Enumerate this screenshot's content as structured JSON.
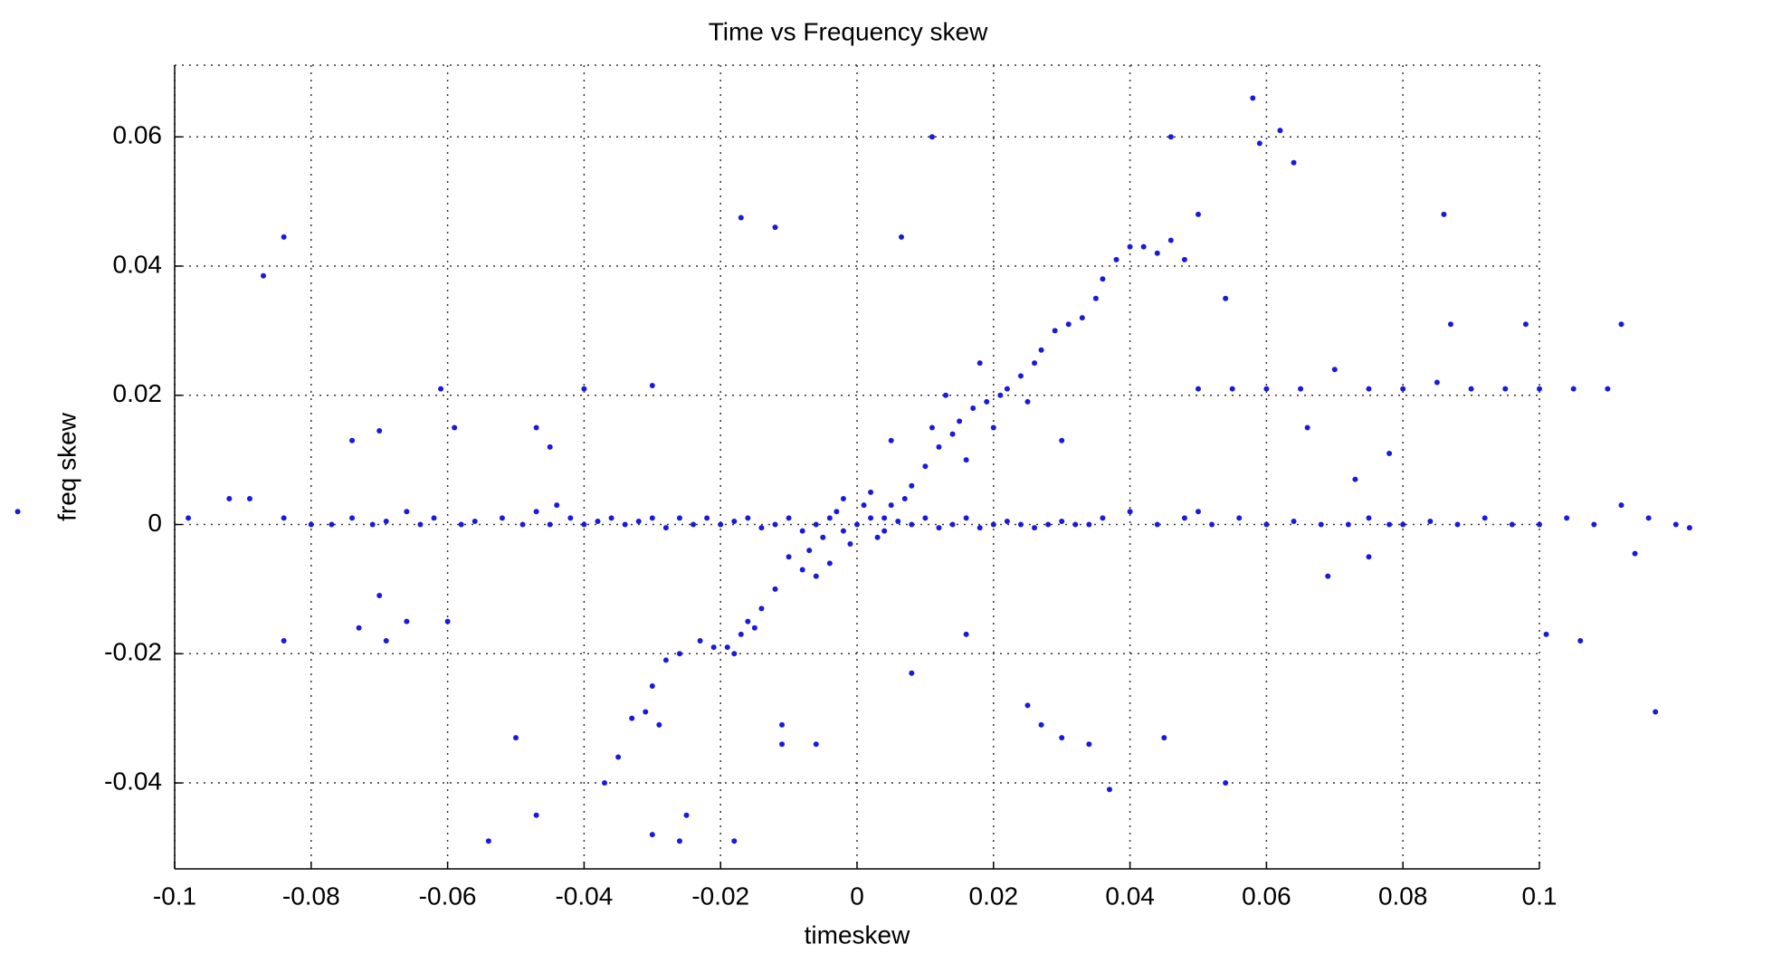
{
  "chart_data": {
    "type": "scatter",
    "title": "Time vs Frequency skew",
    "xlabel": "timeskew",
    "ylabel": "freq skew",
    "color": "#1a1adb",
    "grid": true,
    "xlim": [
      -0.1,
      0.1
    ],
    "ylim": [
      -0.0533,
      0.0711
    ],
    "xticks": [
      -0.1,
      -0.08,
      -0.06,
      -0.04,
      -0.02,
      0,
      0.02,
      0.04,
      0.06,
      0.08,
      0.1
    ],
    "yticks": [
      -0.04,
      -0.02,
      0,
      0.02,
      0.04,
      0.06
    ],
    "x": [
      -0.123,
      -0.098,
      -0.092,
      -0.089,
      -0.084,
      -0.08,
      -0.077,
      -0.074,
      -0.071,
      -0.069,
      -0.066,
      -0.064,
      -0.062,
      -0.058,
      -0.056,
      -0.052,
      -0.049,
      -0.047,
      -0.045,
      -0.044,
      -0.042,
      -0.04,
      -0.038,
      -0.036,
      -0.034,
      -0.032,
      -0.03,
      -0.028,
      -0.026,
      -0.024,
      -0.022,
      -0.02,
      -0.018,
      -0.016,
      -0.014,
      -0.012,
      -0.01,
      -0.008,
      -0.006,
      -0.004,
      -0.002,
      0,
      0.002,
      0.004,
      0.006,
      0.008,
      0.01,
      0.012,
      0.014,
      0.016,
      0.018,
      0.02,
      0.022,
      0.024,
      0.026,
      0.028,
      0.03,
      0.032,
      0.034,
      0.036,
      0.04,
      0.044,
      0.048,
      0.05,
      0.052,
      0.056,
      0.06,
      0.064,
      0.068,
      0.072,
      0.075,
      0.078,
      0.08,
      0.084,
      0.088,
      0.092,
      0.096,
      0.1,
      0.104,
      0.108,
      0.112,
      0.116,
      0.12,
      0.122,
      -0.005,
      -0.003,
      -0.001,
      0.001,
      0.003,
      0.005,
      -0.007,
      -0.004,
      -0.002,
      0.002,
      0.004,
      0.007,
      -0.006,
      -0.008,
      -0.01,
      -0.012,
      -0.014,
      -0.016,
      -0.017,
      -0.019,
      -0.021,
      -0.023,
      -0.018,
      -0.015,
      -0.026,
      -0.028,
      -0.03,
      -0.031,
      -0.033,
      -0.035,
      -0.037,
      -0.029,
      -0.03,
      -0.026,
      -0.025,
      -0.018,
      -0.054,
      -0.05,
      -0.047,
      -0.011,
      -0.011,
      -0.006,
      0.008,
      0.016,
      0.008,
      0.01,
      0.012,
      0.014,
      0.015,
      0.017,
      0.019,
      0.021,
      0.022,
      0.024,
      0.026,
      0.027,
      0.029,
      0.031,
      0.033,
      0.035,
      0.036,
      0.038,
      0.04,
      0.042,
      0.044,
      0.046,
      0.048,
      0.05,
      0.013,
      0.018,
      0.011,
      0.016,
      0.02,
      0.025,
      0.03,
      0.005,
      0.05,
      0.055,
      0.06,
      0.065,
      0.07,
      0.075,
      0.08,
      0.085,
      0.09,
      0.095,
      0.1,
      0.105,
      0.11,
      0.112,
      0.098,
      0.087,
      -0.087,
      -0.084,
      -0.017,
      -0.012,
      0.011,
      0.046,
      0.058,
      0.062,
      0.064,
      0.059,
      0.086,
      0.0065,
      -0.061,
      -0.04,
      -0.03,
      -0.047,
      -0.045,
      -0.059,
      -0.07,
      -0.074,
      -0.07,
      -0.073,
      -0.069,
      -0.066,
      -0.084,
      -0.06,
      0.069,
      0.075,
      0.114,
      0.117,
      0.106,
      0.101,
      0.054,
      0.045,
      0.037,
      0.034,
      0.03,
      0.027,
      0.025,
      0.078,
      0.073,
      0.066,
      0.054
    ],
    "values": [
      0.002,
      0.001,
      0.004,
      0.004,
      0.001,
      0,
      0,
      0.001,
      0,
      0.0005,
      0.002,
      0,
      0.001,
      0,
      0.0005,
      0.001,
      0,
      0.002,
      0,
      0.003,
      0.001,
      0,
      0.0005,
      0.001,
      0,
      0.0005,
      0.001,
      -0.0005,
      0.001,
      0,
      0.001,
      0,
      0.0005,
      0.001,
      -0.0005,
      0,
      0.001,
      -0.001,
      0,
      0.001,
      -0.001,
      0,
      0.001,
      -0.001,
      0.0005,
      0,
      0.001,
      -0.0005,
      0,
      0.001,
      -0.0005,
      0,
      0.0005,
      0,
      -0.0005,
      0,
      0.0005,
      0,
      0,
      0.001,
      0.002,
      0,
      0.001,
      0.002,
      0,
      0.001,
      0,
      0.0005,
      0,
      0,
      0.001,
      0,
      0,
      0.0005,
      0,
      0.001,
      0,
      0,
      0.001,
      0,
      0.003,
      0.001,
      0,
      -0.0005,
      -0.002,
      0.002,
      -0.003,
      0.003,
      -0.002,
      0.003,
      -0.004,
      -0.006,
      0.004,
      0.005,
      0.001,
      0.004,
      -0.008,
      -0.007,
      -0.005,
      -0.01,
      -0.013,
      -0.015,
      -0.017,
      -0.019,
      -0.019,
      -0.018,
      -0.02,
      -0.016,
      -0.02,
      -0.021,
      -0.025,
      -0.029,
      -0.03,
      -0.036,
      -0.04,
      -0.031,
      -0.048,
      -0.049,
      -0.045,
      -0.049,
      -0.049,
      -0.033,
      -0.045,
      -0.031,
      -0.034,
      -0.034,
      -0.023,
      -0.017,
      0.006,
      0.009,
      0.012,
      0.014,
      0.016,
      0.018,
      0.019,
      0.02,
      0.021,
      0.023,
      0.025,
      0.027,
      0.03,
      0.031,
      0.032,
      0.035,
      0.038,
      0.041,
      0.043,
      0.043,
      0.042,
      0.044,
      0.041,
      0.048,
      0.02,
      0.025,
      0.015,
      0.01,
      0.015,
      0.019,
      0.013,
      0.013,
      0.021,
      0.021,
      0.021,
      0.021,
      0.024,
      0.021,
      0.021,
      0.022,
      0.021,
      0.021,
      0.021,
      0.021,
      0.021,
      0.031,
      0.031,
      0.031,
      0.0385,
      0.0445,
      0.0475,
      0.046,
      0.06,
      0.06,
      0.066,
      0.061,
      0.056,
      0.059,
      0.048,
      0.0445,
      0.021,
      0.021,
      0.0215,
      0.015,
      0.012,
      0.015,
      0.0145,
      0.013,
      -0.011,
      -0.016,
      -0.018,
      -0.015,
      -0.018,
      -0.015,
      -0.008,
      -0.005,
      -0.0045,
      -0.029,
      -0.018,
      -0.017,
      -0.04,
      -0.033,
      -0.041,
      -0.034,
      -0.033,
      -0.031,
      -0.028,
      0.011,
      0.007,
      0.015,
      0.035
    ]
  }
}
